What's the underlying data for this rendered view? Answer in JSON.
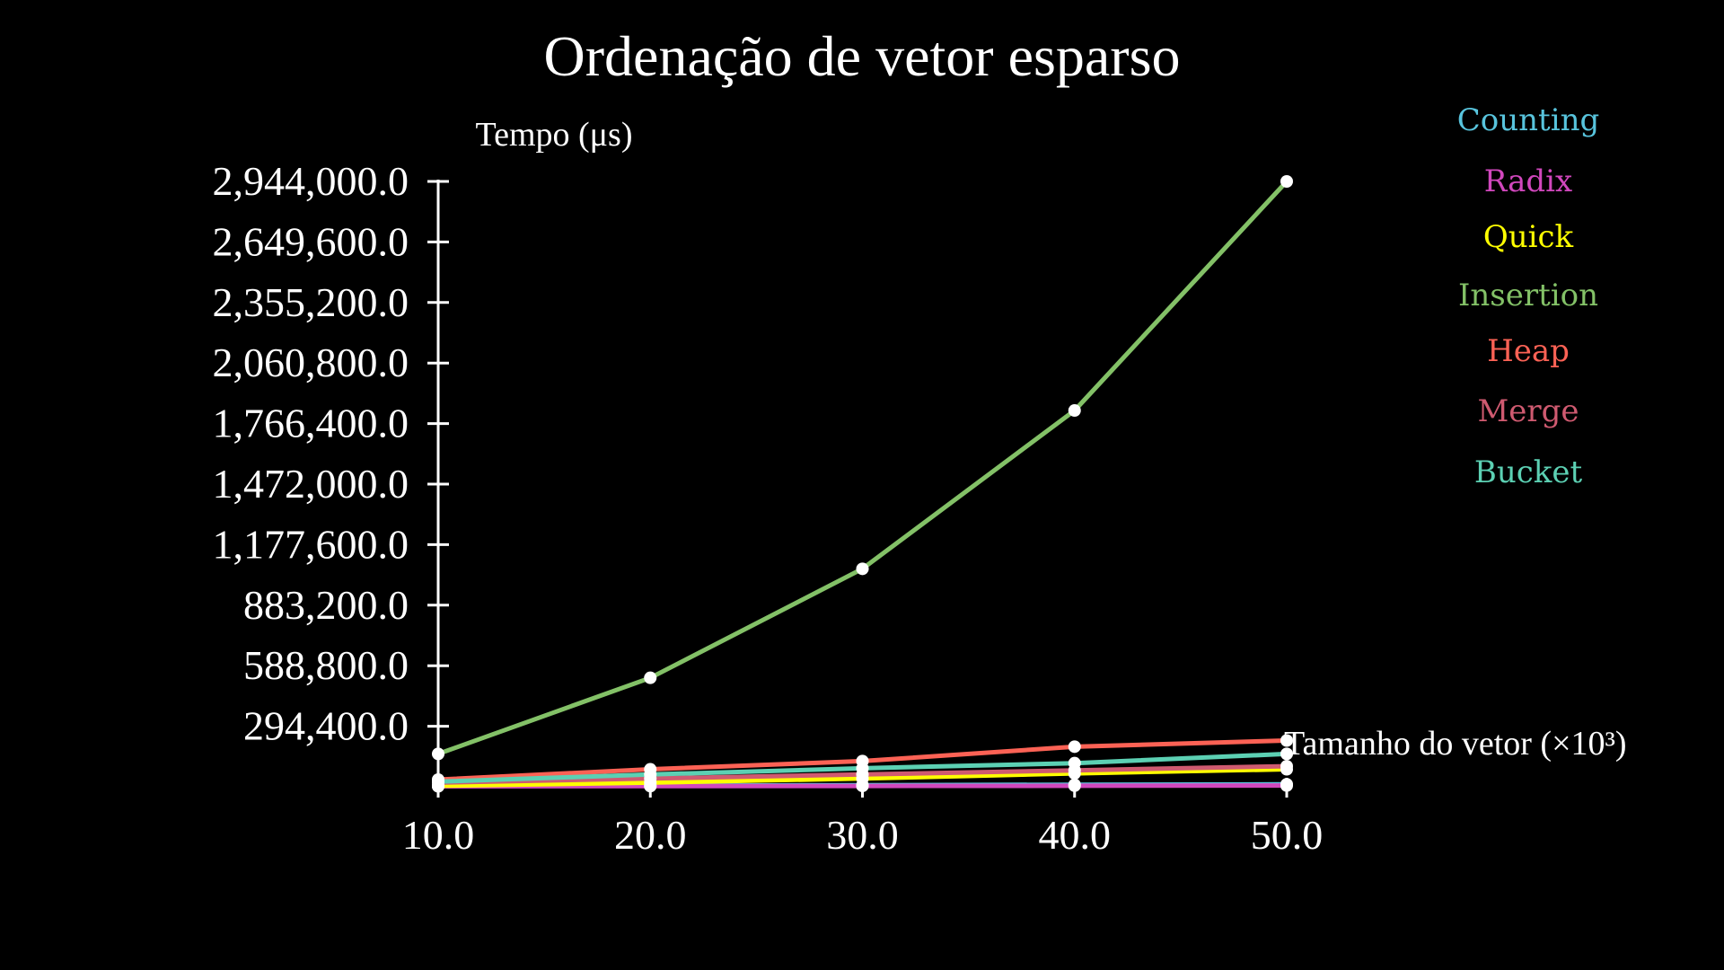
{
  "chart_data": {
    "type": "line",
    "title": "Ordenação de vetor esparso",
    "xlabel": "Tamanho do vetor (×10³)",
    "ylabel": "Tempo (μs)",
    "x": [
      10.0,
      20.0,
      30.0,
      40.0,
      50.0
    ],
    "x_tick_labels": [
      "10.0",
      "20.0",
      "30.0",
      "40.0",
      "50.0"
    ],
    "xlim": [
      10.0,
      50.0
    ],
    "y_ticks": [
      294400,
      588800,
      883200,
      1177600,
      1472000,
      1766400,
      2060800,
      2355200,
      2649600,
      2944000
    ],
    "y_tick_labels": [
      "294,400.0",
      "588,800.0",
      "883,200.0",
      "1,177,600.0",
      "1,472,000.0",
      "1,766,400.0",
      "2,060,800.0",
      "2,355,200.0",
      "2,649,600.0",
      "2,944,000.0"
    ],
    "ylim": [
      0,
      2944000
    ],
    "grid": false,
    "legend_position": "top-right",
    "series": [
      {
        "name": "Counting",
        "color": "#58c4dd",
        "values": [
          3000,
          5000,
          8000,
          10000,
          12000
        ]
      },
      {
        "name": "Radix",
        "color": "#d147bd",
        "values": [
          2000,
          3000,
          4000,
          5000,
          6000
        ]
      },
      {
        "name": "Quick",
        "color": "#ffff00",
        "values": [
          5000,
          20000,
          40000,
          65000,
          85000
        ]
      },
      {
        "name": "Insertion",
        "color": "#83c167",
        "values": [
          160000,
          530000,
          1060000,
          1830000,
          2944000
        ]
      },
      {
        "name": "Heap",
        "color": "#fc6255",
        "values": [
          35000,
          85000,
          125000,
          195000,
          225000
        ]
      },
      {
        "name": "Merge",
        "color": "#cf5a70",
        "values": [
          20000,
          40000,
          60000,
          80000,
          100000
        ]
      },
      {
        "name": "Bucket",
        "color": "#5cd0b3",
        "values": [
          25000,
          60000,
          90000,
          115000,
          160000
        ]
      }
    ]
  }
}
